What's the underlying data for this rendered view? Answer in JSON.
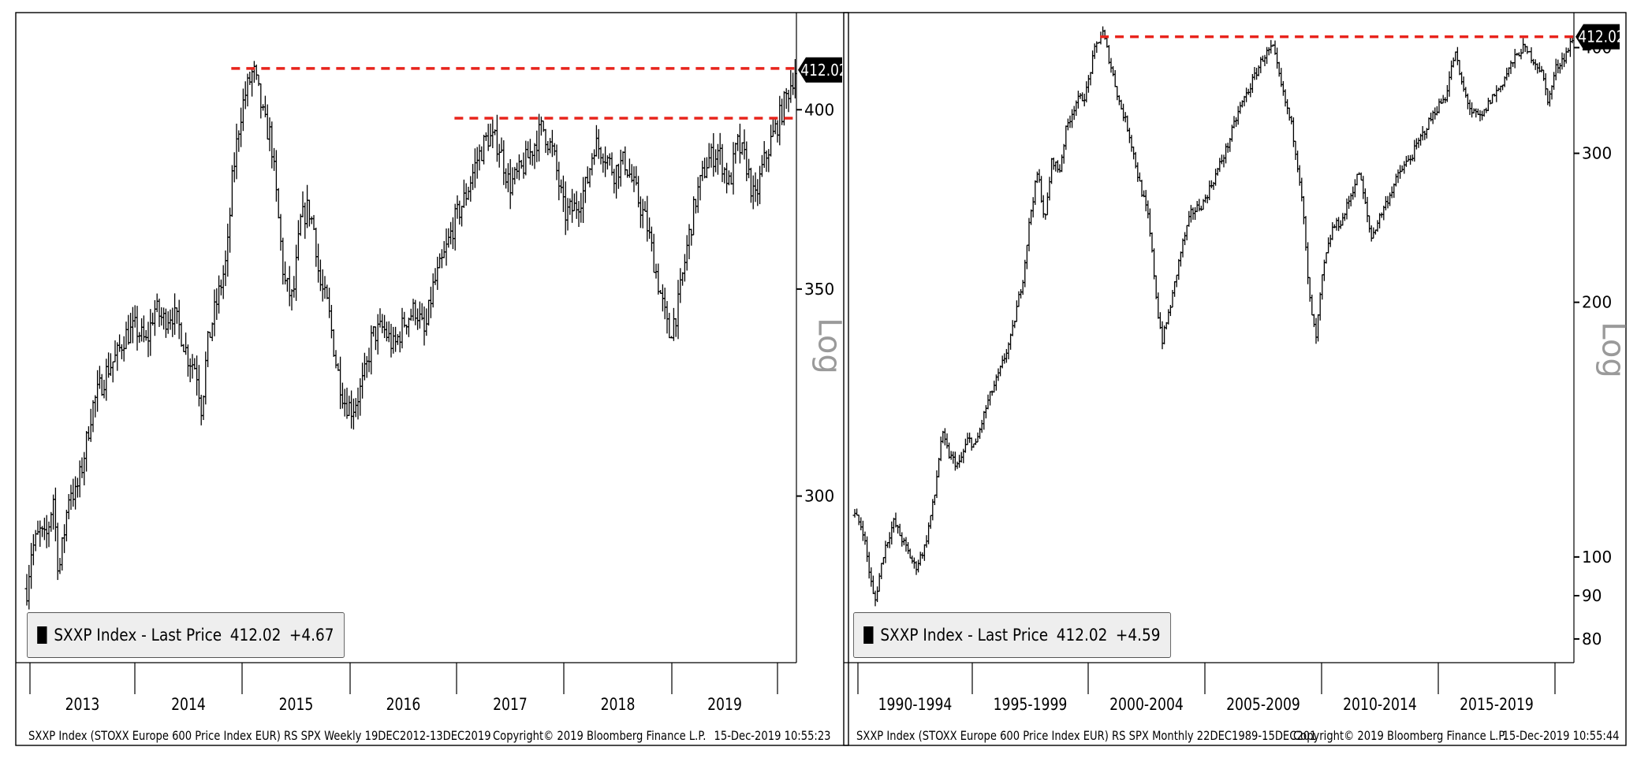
{
  "chart_data": [
    {
      "type": "line",
      "scale": "log",
      "x_tick_labels": [
        "2013",
        "2014",
        "2015",
        "2016",
        "2017",
        "2018",
        "2019"
      ],
      "x_range": [
        2012.96,
        2019.96
      ],
      "y_ticks": [
        300,
        350,
        400
      ],
      "ylim": [
        265,
        430
      ],
      "grid": false,
      "axis_label": "Log",
      "last_price_label": "412.02",
      "last_price": 412.02,
      "resistance_lines": [
        {
          "value": 412.5,
          "from": 2014.82,
          "to": 2019.96
        },
        {
          "value": 397.5,
          "from": 2016.85,
          "to": 2019.96
        }
      ],
      "series": [
        {
          "x": [
            2012.96,
            2013.0,
            2013.08,
            2013.13,
            2013.17,
            2013.2,
            2013.25,
            2013.3,
            2013.35,
            2013.4,
            2013.45,
            2013.5,
            2013.55,
            2013.62,
            2013.7,
            2013.78,
            2013.85,
            2013.95,
            2014.05,
            2014.12,
            2014.2,
            2014.28,
            2014.35,
            2014.42,
            2014.5,
            2014.55,
            2014.6,
            2014.65,
            2014.7,
            2014.78,
            2014.83,
            2014.9,
            2014.95,
            2015.02,
            2015.08,
            2015.12,
            2015.18,
            2015.22,
            2015.3,
            2015.38,
            2015.45,
            2015.52,
            2015.58,
            2015.62,
            2015.7,
            2015.78,
            2015.85,
            2015.92,
            2016.0,
            2016.05,
            2016.1,
            2016.2,
            2016.3,
            2016.4,
            2016.5,
            2016.58,
            2016.65,
            2016.75,
            2016.85,
            2016.95,
            2017.05,
            2017.15,
            2017.25,
            2017.35,
            2017.45,
            2017.55,
            2017.65,
            2017.75,
            2017.85,
            2017.95,
            2018.05,
            2018.12,
            2018.2,
            2018.3,
            2018.4,
            2018.5,
            2018.6,
            2018.7,
            2018.8,
            2018.88,
            2018.97,
            2019.05,
            2019.15,
            2019.25,
            2019.35,
            2019.42,
            2019.5,
            2019.58,
            2019.65,
            2019.72,
            2019.8,
            2019.88,
            2019.95
          ],
          "y": [
            280,
            288,
            292,
            290,
            295,
            300,
            283,
            292,
            302,
            300,
            305,
            312,
            320,
            325,
            330,
            333,
            338,
            340,
            336,
            345,
            342,
            344,
            340,
            333,
            330,
            320,
            335,
            342,
            348,
            358,
            380,
            398,
            405,
            412,
            403,
            396,
            392,
            378,
            352,
            347,
            368,
            372,
            365,
            352,
            345,
            330,
            322,
            320,
            325,
            330,
            338,
            340,
            335,
            342,
            345,
            338,
            350,
            358,
            368,
            375,
            385,
            392,
            390,
            378,
            382,
            388,
            395,
            387,
            370,
            372,
            378,
            390,
            388,
            382,
            385,
            376,
            367,
            352,
            338,
            345,
            362,
            375,
            385,
            388,
            378,
            390,
            385,
            373,
            383,
            390,
            397,
            405,
            412
          ],
          "style": "ohlc"
        }
      ],
      "legend": {
        "label": "SXXP Index - Last Price",
        "value": "412.02",
        "change": "+4.67"
      },
      "footer": {
        "left": "SXXP Index (STOXX Europe 600 Price Index EUR) RS SPX  Weekly 19DEC2012-13DEC2019",
        "center": "Copyright© 2019 Bloomberg Finance L.P.",
        "right": "15-Dec-2019 10:55:23"
      }
    },
    {
      "type": "line",
      "scale": "log",
      "x_tick_labels": [
        "1990-1994",
        "1995-1999",
        "2000-2004",
        "2005-2009",
        "2010-2014",
        "2015-2019"
      ],
      "x_range": [
        1989.97,
        2019.96
      ],
      "y_ticks": [
        80,
        90,
        100,
        200,
        300,
        400
      ],
      "y_tick_labels": [
        "80",
        "90",
        "100",
        "200",
        "300",
        "400"
      ],
      "ylim": [
        75,
        440
      ],
      "grid": false,
      "axis_label": "Log",
      "last_price_label": "412.02",
      "last_price": 412.02,
      "resistance_lines": [
        {
          "value": 412.0,
          "from": 2000.2,
          "to": 2019.96
        }
      ],
      "series": [
        {
          "x": [
            1989.97,
            1990.3,
            1990.6,
            1990.8,
            1991.2,
            1991.6,
            1992.0,
            1992.5,
            1992.9,
            1993.3,
            1993.6,
            1993.9,
            1994.3,
            1994.7,
            1995.0,
            1995.5,
            1996.0,
            1996.5,
            1997.0,
            1997.3,
            1997.6,
            1997.9,
            1998.2,
            1998.5,
            1998.8,
            1999.2,
            1999.6,
            2000.0,
            2000.3,
            2000.7,
            2001.0,
            2001.4,
            2001.8,
            2002.2,
            2002.6,
            2002.8,
            2003.2,
            2003.6,
            2004.0,
            2004.5,
            2005.0,
            2005.5,
            2006.0,
            2006.5,
            2007.0,
            2007.4,
            2007.8,
            2008.2,
            2008.6,
            2008.9,
            2009.2,
            2009.5,
            2009.9,
            2010.3,
            2010.7,
            2011.0,
            2011.5,
            2011.8,
            2012.2,
            2012.7,
            2013.2,
            2013.7,
            2014.2,
            2014.6,
            2015.0,
            2015.3,
            2015.7,
            2016.1,
            2016.5,
            2016.9,
            2017.3,
            2017.8,
            2018.2,
            2018.6,
            2018.9,
            2019.2,
            2019.6,
            2019.96
          ],
          "y": [
            112,
            108,
            95,
            88,
            102,
            110,
            104,
            97,
            103,
            118,
            140,
            132,
            128,
            138,
            135,
            152,
            165,
            182,
            215,
            255,
            285,
            248,
            296,
            285,
            322,
            345,
            352,
            400,
            418,
            375,
            345,
            318,
            280,
            252,
            195,
            180,
            202,
            232,
            255,
            262,
            282,
            305,
            338,
            362,
            390,
            400,
            355,
            322,
            270,
            205,
            180,
            218,
            245,
            250,
            270,
            285,
            238,
            250,
            265,
            285,
            298,
            318,
            338,
            350,
            395,
            360,
            335,
            330,
            348,
            360,
            380,
            400,
            390,
            375,
            345,
            378,
            392,
            412
          ],
          "style": "ohlc"
        }
      ],
      "legend": {
        "label": "SXXP Index - Last Price",
        "value": "412.02",
        "change": "+4.59"
      },
      "footer": {
        "left": "SXXP Index (STOXX Europe 600 Price Index EUR) RS SPX  Monthly 22DEC1989-15DEC201",
        "center": "Copyright© 2019 Bloomberg Finance L.P.",
        "right": "15-Dec-2019 10:55:44"
      }
    }
  ],
  "colors": {
    "line": "#000000",
    "resistance": "#e8241c",
    "legend_bg": "#eeeeee",
    "axis_label": "#9a9a9a"
  }
}
